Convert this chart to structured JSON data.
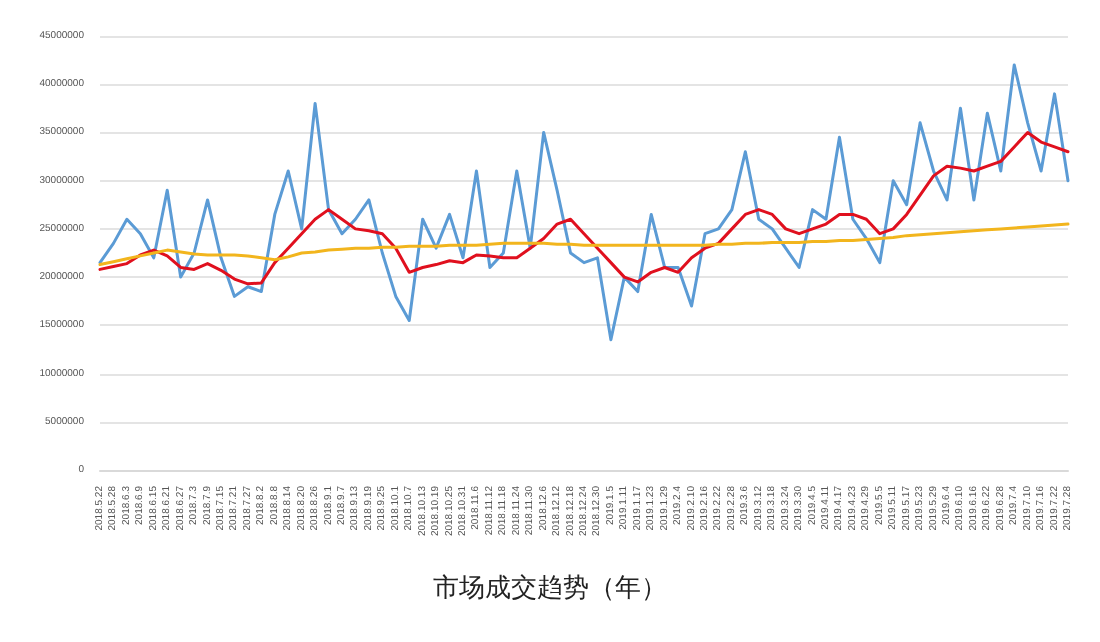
{
  "chart_data": {
    "type": "line",
    "title": "市场成交趋势（年）",
    "categories": [
      "2018.5.22",
      "2018.5.28",
      "2018.6.3",
      "2018.6.9",
      "2018.6.15",
      "2018.6.21",
      "2018.6.27",
      "2018.7.3",
      "2018.7.9",
      "2018.7.15",
      "2018.7.21",
      "2018.7.27",
      "2018.8.2",
      "2018.8.8",
      "2018.8.14",
      "2018.8.20",
      "2018.8.26",
      "2018.9.1",
      "2018.9.7",
      "2018.9.13",
      "2018.9.19",
      "2018.9.25",
      "2018.10.1",
      "2018.10.7",
      "2018.10.13",
      "2018.10.19",
      "2018.10.25",
      "2018.10.31",
      "2018.11.6",
      "2018.11.12",
      "2018.11.18",
      "2018.11.24",
      "2018.11.30",
      "2018.12.6",
      "2018.12.12",
      "2018.12.18",
      "2018.12.24",
      "2018.12.30",
      "2019.1.5",
      "2019.1.11",
      "2019.1.17",
      "2019.1.23",
      "2019.1.29",
      "2019.2.4",
      "2019.2.10",
      "2019.2.16",
      "2019.2.22",
      "2019.2.28",
      "2019.3.6",
      "2019.3.12",
      "2019.3.18",
      "2019.3.24",
      "2019.3.30",
      "2019.4.5",
      "2019.4.11",
      "2019.4.17",
      "2019.4.23",
      "2019.4.29",
      "2019.5.5",
      "2019.5.11",
      "2019.5.17",
      "2019.5.23",
      "2019.5.29",
      "2019.6.4",
      "2019.6.10",
      "2019.6.16",
      "2019.6.22",
      "2019.6.28",
      "2019.7.4",
      "2019.7.10",
      "2019.7.16",
      "2019.7.22",
      "2019.7.28"
    ],
    "series": [
      {
        "color": "#5b9bd5",
        "values": [
          21500000,
          23500000,
          26000000,
          24500000,
          22000000,
          29000000,
          20000000,
          22500000,
          28000000,
          22000000,
          18000000,
          19000000,
          18500000,
          26500000,
          31000000,
          25000000,
          38000000,
          27000000,
          24500000,
          26000000,
          28000000,
          22500000,
          18000000,
          15500000,
          26000000,
          23000000,
          26500000,
          22000000,
          31000000,
          21000000,
          22500000,
          31000000,
          23000000,
          35000000,
          29000000,
          22500000,
          21500000,
          22000000,
          13500000,
          20000000,
          18500000,
          26500000,
          21000000,
          21000000,
          17000000,
          24500000,
          25000000,
          27000000,
          33000000,
          26000000,
          25000000,
          23000000,
          21000000,
          27000000,
          26000000,
          34500000,
          26000000,
          24000000,
          21500000,
          30000000,
          27500000,
          36000000,
          31000000,
          28000000,
          37500000,
          28000000,
          37000000,
          31000000,
          42000000,
          36000000,
          31000000,
          39000000,
          30000000
        ]
      },
      {
        "color": "#e0101e",
        "values": [
          20800000,
          21100000,
          21400000,
          22300000,
          22800000,
          22200000,
          21000000,
          20800000,
          21400000,
          20700000,
          19800000,
          19300000,
          19400000,
          21500000,
          23000000,
          24500000,
          26000000,
          27000000,
          26000000,
          25000000,
          24800000,
          24500000,
          23000000,
          20500000,
          21000000,
          21300000,
          21700000,
          21500000,
          22300000,
          22200000,
          22000000,
          22000000,
          23000000,
          24000000,
          25500000,
          26000000,
          24500000,
          23000000,
          21500000,
          20000000,
          19500000,
          20500000,
          21000000,
          20500000,
          22000000,
          23000000,
          23500000,
          25000000,
          26500000,
          27000000,
          26500000,
          25000000,
          24500000,
          25000000,
          25500000,
          26500000,
          26500000,
          26000000,
          24500000,
          25000000,
          26500000,
          28500000,
          30500000,
          31500000,
          31300000,
          31000000,
          31500000,
          32000000,
          33500000,
          35000000,
          34000000,
          33500000,
          33000000
        ]
      },
      {
        "color": "#f2b51d",
        "values": [
          21300000,
          21600000,
          21900000,
          22200000,
          22500000,
          22800000,
          22600000,
          22400000,
          22300000,
          22300000,
          22300000,
          22200000,
          22000000,
          21800000,
          22100000,
          22500000,
          22600000,
          22800000,
          22900000,
          23000000,
          23000000,
          23100000,
          23100000,
          23200000,
          23200000,
          23200000,
          23300000,
          23300000,
          23300000,
          23400000,
          23500000,
          23500000,
          23500000,
          23500000,
          23400000,
          23400000,
          23300000,
          23300000,
          23300000,
          23300000,
          23300000,
          23300000,
          23300000,
          23300000,
          23300000,
          23300000,
          23400000,
          23400000,
          23500000,
          23500000,
          23600000,
          23600000,
          23600000,
          23700000,
          23700000,
          23800000,
          23800000,
          23900000,
          24000000,
          24100000,
          24300000,
          24400000,
          24500000,
          24600000,
          24700000,
          24800000,
          24900000,
          25000000,
          25100000,
          25200000,
          25300000,
          25400000,
          25500000
        ]
      }
    ],
    "ylim": [
      0,
      45000000
    ],
    "yticks": [
      0,
      5000000,
      10000000,
      15000000,
      20000000,
      25000000,
      30000000,
      35000000,
      40000000,
      45000000
    ],
    "grid": "y",
    "marker": "none",
    "line_style": "solid"
  }
}
